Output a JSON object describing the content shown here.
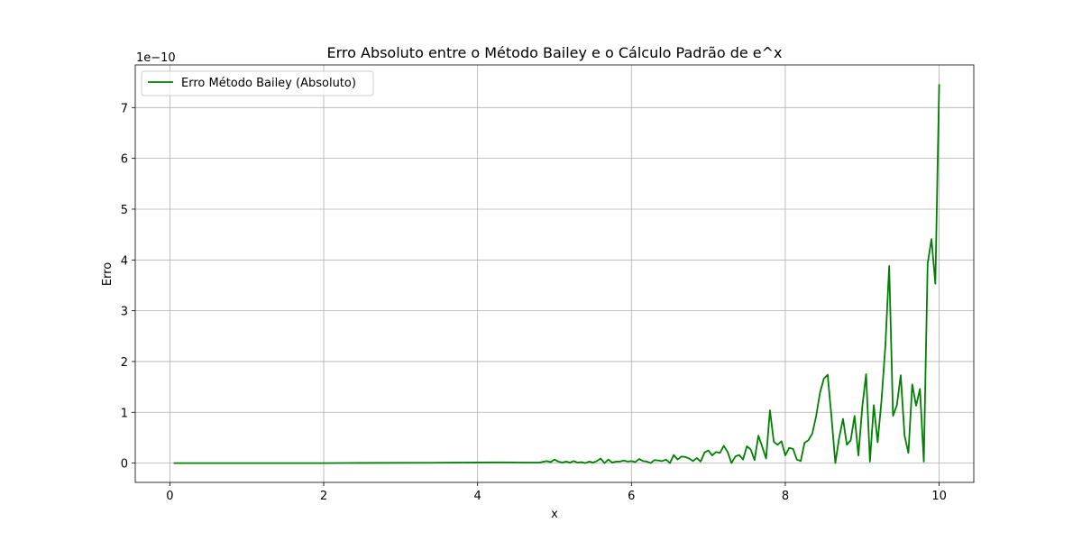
{
  "chart_data": {
    "type": "line",
    "title": "Erro Absoluto entre o Método Bailey e o Cálculo Padrão de e^x",
    "xlabel": "x",
    "ylabel": "Erro",
    "y_offset_text": "1e−10",
    "y_scale_factor": 1e-10,
    "xlim": [
      -0.45,
      10.45
    ],
    "ylim": [
      -0.38,
      7.84
    ],
    "x_ticks": [
      0,
      2,
      4,
      6,
      8,
      10
    ],
    "y_ticks": [
      0,
      1,
      2,
      3,
      4,
      5,
      6,
      7
    ],
    "grid": true,
    "legend_position": "top-left",
    "series": [
      {
        "name": "Erro Método Bailey (Absoluto)",
        "color": "#008000",
        "points": [
          [
            0.05,
            0
          ],
          [
            1.0,
            0
          ],
          [
            2.0,
            0
          ],
          [
            2.5,
            0.003
          ],
          [
            3.0,
            0.005
          ],
          [
            3.4,
            0.006
          ],
          [
            3.8,
            0.01
          ],
          [
            4.0,
            0.012
          ],
          [
            4.3,
            0.015
          ],
          [
            4.6,
            0.01
          ],
          [
            4.8,
            0.01
          ],
          [
            4.9,
            0.04
          ],
          [
            4.95,
            0.02
          ],
          [
            5.0,
            0.07
          ],
          [
            5.05,
            0.03
          ],
          [
            5.1,
            0.01
          ],
          [
            5.15,
            0.03
          ],
          [
            5.2,
            0.01
          ],
          [
            5.25,
            0.04
          ],
          [
            5.3,
            0.01
          ],
          [
            5.35,
            0.02
          ],
          [
            5.4,
            0.0
          ],
          [
            5.45,
            0.03
          ],
          [
            5.5,
            0.01
          ],
          [
            5.55,
            0.04
          ],
          [
            5.6,
            0.09
          ],
          [
            5.65,
            0.0
          ],
          [
            5.7,
            0.07
          ],
          [
            5.75,
            0.01
          ],
          [
            5.8,
            0.03
          ],
          [
            5.85,
            0.03
          ],
          [
            5.9,
            0.05
          ],
          [
            5.95,
            0.03
          ],
          [
            6.0,
            0.04
          ],
          [
            6.05,
            0.02
          ],
          [
            6.1,
            0.08
          ],
          [
            6.15,
            0.04
          ],
          [
            6.2,
            0.03
          ],
          [
            6.25,
            0.0
          ],
          [
            6.3,
            0.06
          ],
          [
            6.35,
            0.05
          ],
          [
            6.4,
            0.04
          ],
          [
            6.45,
            0.07
          ],
          [
            6.5,
            0.0
          ],
          [
            6.55,
            0.16
          ],
          [
            6.6,
            0.07
          ],
          [
            6.65,
            0.13
          ],
          [
            6.7,
            0.12
          ],
          [
            6.75,
            0.09
          ],
          [
            6.8,
            0.04
          ],
          [
            6.85,
            0.1
          ],
          [
            6.9,
            0.03
          ],
          [
            6.95,
            0.21
          ],
          [
            7.0,
            0.25
          ],
          [
            7.05,
            0.15
          ],
          [
            7.1,
            0.22
          ],
          [
            7.15,
            0.2
          ],
          [
            7.2,
            0.34
          ],
          [
            7.25,
            0.22
          ],
          [
            7.3,
            0.0
          ],
          [
            7.35,
            0.13
          ],
          [
            7.4,
            0.16
          ],
          [
            7.45,
            0.07
          ],
          [
            7.5,
            0.33
          ],
          [
            7.55,
            0.27
          ],
          [
            7.6,
            0.06
          ],
          [
            7.65,
            0.54
          ],
          [
            7.7,
            0.32
          ],
          [
            7.75,
            0.09
          ],
          [
            7.8,
            1.04
          ],
          [
            7.85,
            0.42
          ],
          [
            7.9,
            0.36
          ],
          [
            7.95,
            0.43
          ],
          [
            8.0,
            0.15
          ],
          [
            8.05,
            0.3
          ],
          [
            8.1,
            0.28
          ],
          [
            8.15,
            0.07
          ],
          [
            8.2,
            0.04
          ],
          [
            8.25,
            0.4
          ],
          [
            8.3,
            0.45
          ],
          [
            8.35,
            0.58
          ],
          [
            8.4,
            0.92
          ],
          [
            8.45,
            1.38
          ],
          [
            8.5,
            1.66
          ],
          [
            8.55,
            1.74
          ],
          [
            8.6,
            0.91
          ],
          [
            8.65,
            0.0
          ],
          [
            8.7,
            0.5
          ],
          [
            8.75,
            0.87
          ],
          [
            8.8,
            0.36
          ],
          [
            8.85,
            0.45
          ],
          [
            8.9,
            0.93
          ],
          [
            8.95,
            0.15
          ],
          [
            9.0,
            1.1
          ],
          [
            9.05,
            1.75
          ],
          [
            9.1,
            0.03
          ],
          [
            9.15,
            1.14
          ],
          [
            9.2,
            0.41
          ],
          [
            9.25,
            1.23
          ],
          [
            9.3,
            2.29
          ],
          [
            9.35,
            3.88
          ],
          [
            9.4,
            0.93
          ],
          [
            9.45,
            1.14
          ],
          [
            9.5,
            1.73
          ],
          [
            9.55,
            0.54
          ],
          [
            9.6,
            0.2
          ],
          [
            9.65,
            1.55
          ],
          [
            9.7,
            1.13
          ],
          [
            9.75,
            1.46
          ],
          [
            9.8,
            0.03
          ],
          [
            9.85,
            3.93
          ],
          [
            9.9,
            4.41
          ],
          [
            9.95,
            3.53
          ],
          [
            10.0,
            7.46
          ]
        ]
      }
    ]
  }
}
